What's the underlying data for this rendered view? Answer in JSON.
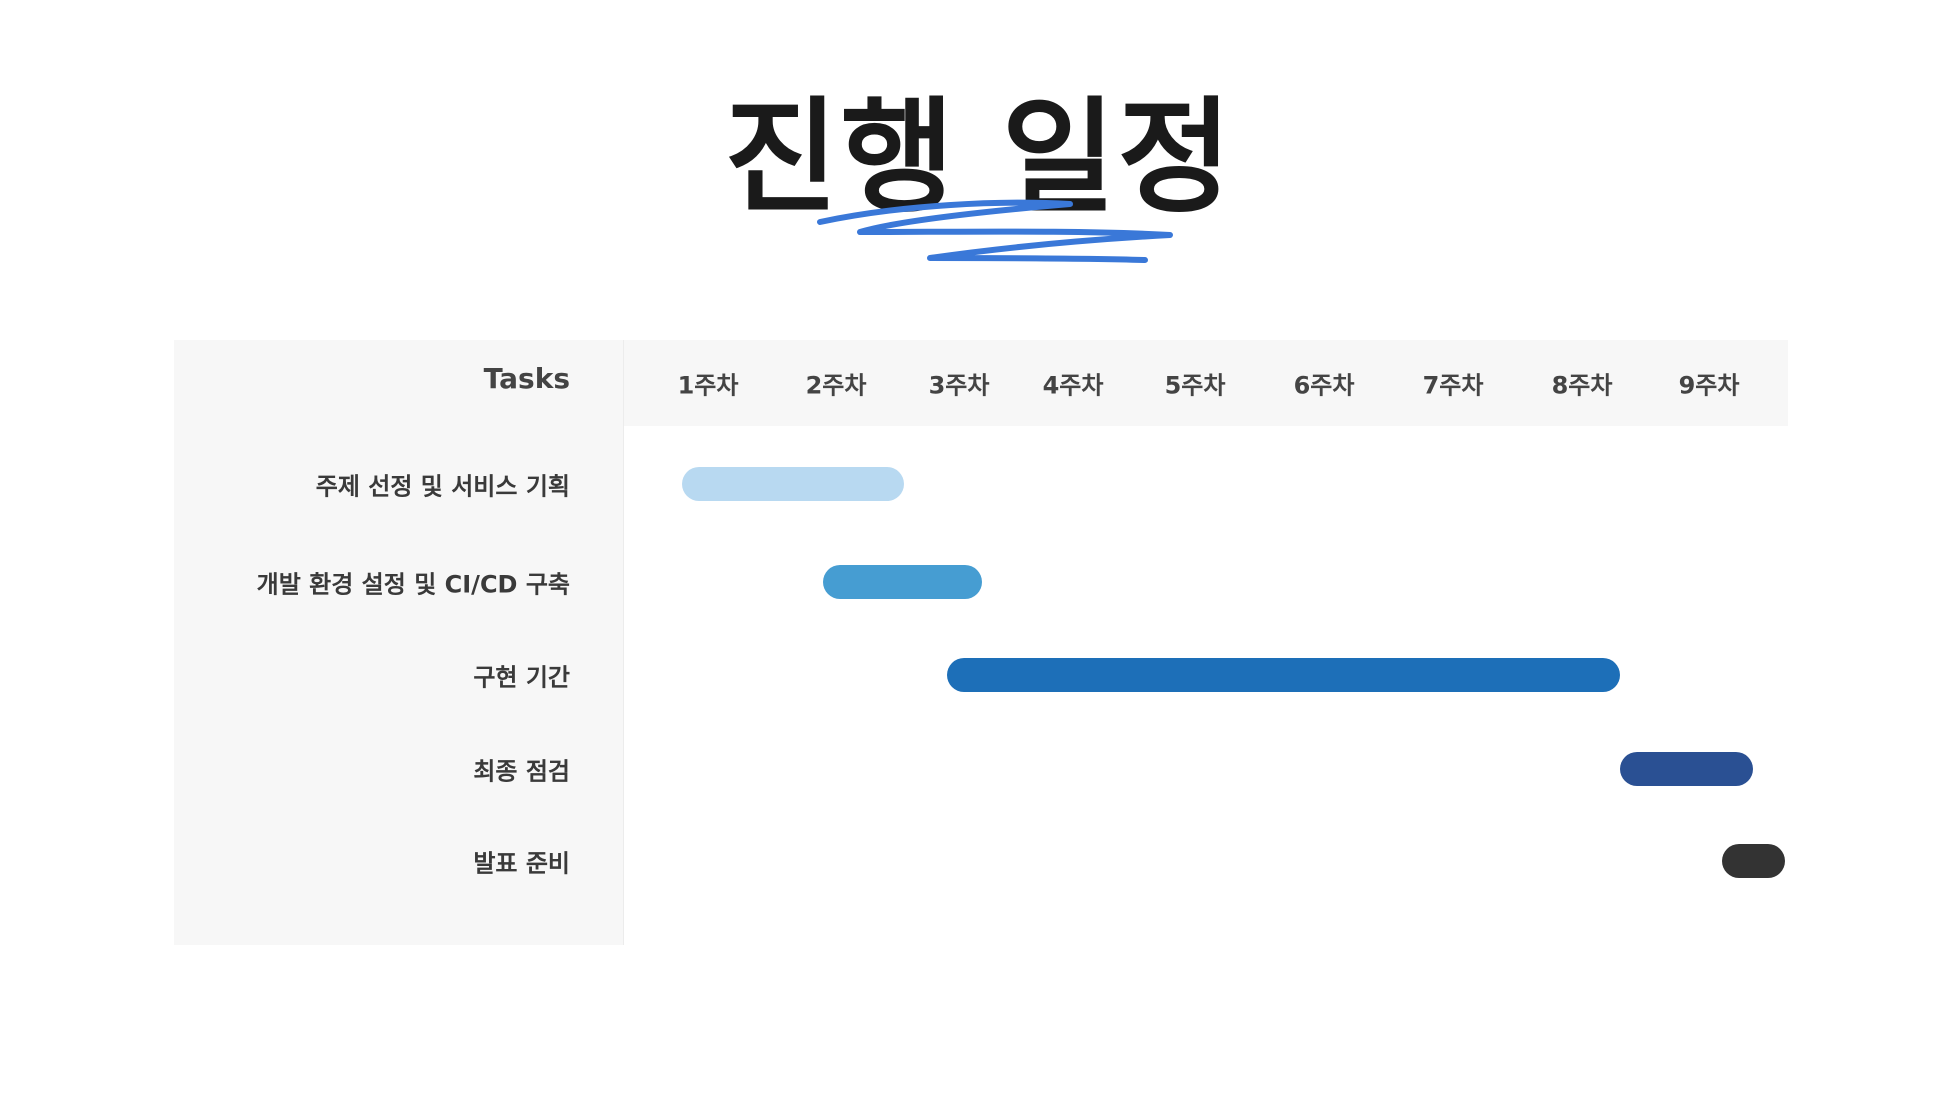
{
  "slide": {
    "title": "진행 일정"
  },
  "chart_data": {
    "type": "gantt",
    "header": "Tasks",
    "weeks": [
      "1주차",
      "2주차",
      "3주차",
      "4주차",
      "5주차",
      "6주차",
      "7주차",
      "8주차",
      "9주차"
    ],
    "tasks": [
      {
        "name": "주제 선정 및 서비스 기획",
        "start": 0.8,
        "end": 2.55,
        "color": "#b8d9f1"
      },
      {
        "name": "개발 환경 설정 및 CI/CD 구축",
        "start": 1.9,
        "end": 3.2,
        "color": "#469dd2"
      },
      {
        "name": "구현 기간",
        "start": 2.9,
        "end": 8.3,
        "color": "#1d6fb8"
      },
      {
        "name": "최종 점검",
        "start": 8.3,
        "end": 9.35,
        "color": "#2a5093"
      },
      {
        "name": "발표 준비",
        "start": 9.1,
        "end": 9.6,
        "color": "#333333"
      }
    ]
  },
  "colors": {
    "scribble": "#3a78d8",
    "panel": "#f7f7f7",
    "title": "#1a1a1a"
  }
}
